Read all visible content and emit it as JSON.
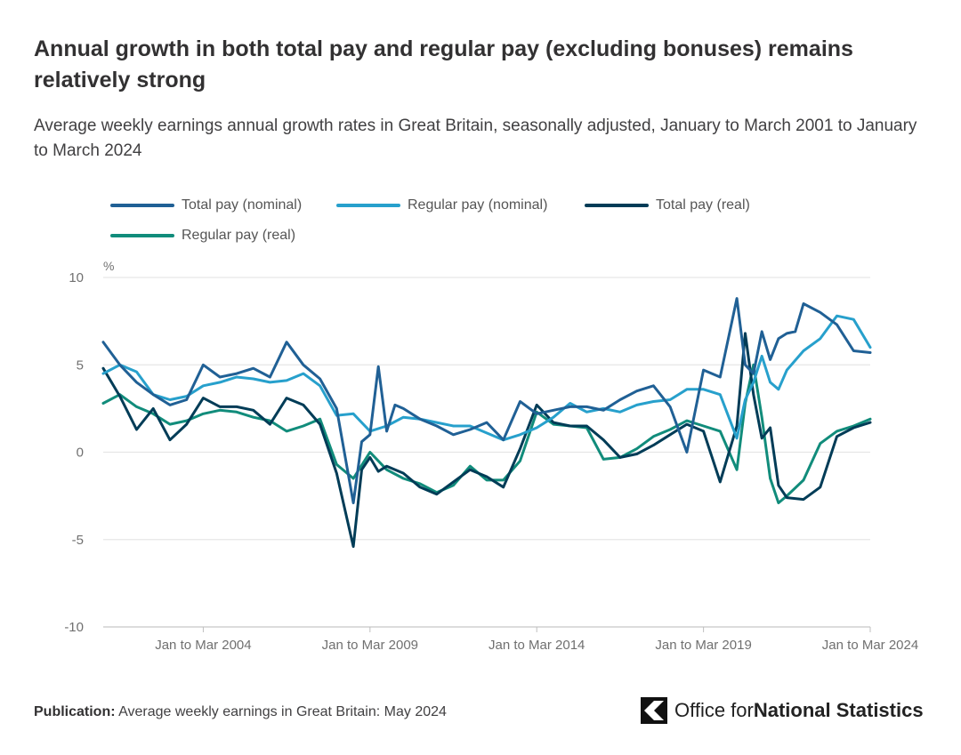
{
  "title": "Annual growth in both total pay and regular pay (excluding bonuses) remains relatively strong",
  "subtitle": "Average weekly earnings annual growth rates in Great Britain, seasonally adjusted, January to March 2001 to January to March 2024",
  "footer": {
    "label": "Publication:",
    "text": "Average weekly earnings in Great Britain: May 2024"
  },
  "brand": {
    "part1": "Office for ",
    "part2": "National Statistics"
  },
  "colors": {
    "total_nominal": "#206095",
    "regular_nominal": "#27a0cc",
    "total_real": "#003c57",
    "regular_real": "#118c7b",
    "grid": "#e6e6e6",
    "axis_text": "#707070"
  },
  "chart_data": {
    "type": "line",
    "title": "Annual growth in both total pay and regular pay (excluding bonuses) remains relatively strong",
    "ylabel": "%",
    "xlabel": "",
    "ylim": [
      -10,
      10
    ],
    "yticks": [
      10,
      5,
      0,
      -5,
      -10
    ],
    "xlim": [
      2001.0,
      2024.0
    ],
    "xtick_positions": [
      2004.0,
      2009.0,
      2014.0,
      2019.0,
      2024.0
    ],
    "xtick_labels": [
      "Jan to Mar 2004",
      "Jan to Mar 2009",
      "Jan to Mar 2014",
      "Jan to Mar 2019",
      "Jan to Mar 2024"
    ],
    "legend_position": "top",
    "grid": true,
    "series": [
      {
        "name": "Total pay (nominal)",
        "x": [
          2001.0,
          2001.5,
          2002.0,
          2002.5,
          2003.0,
          2003.5,
          2004.0,
          2004.5,
          2005.0,
          2005.5,
          2006.0,
          2006.5,
          2007.0,
          2007.5,
          2008.0,
          2008.5,
          2008.75,
          2009.0,
          2009.25,
          2009.5,
          2009.75,
          2010.0,
          2010.5,
          2011.0,
          2011.5,
          2012.0,
          2012.5,
          2013.0,
          2013.5,
          2014.0,
          2014.5,
          2015.0,
          2015.5,
          2016.0,
          2016.5,
          2017.0,
          2017.5,
          2018.0,
          2018.5,
          2019.0,
          2019.5,
          2020.0,
          2020.25,
          2020.5,
          2020.75,
          2021.0,
          2021.25,
          2021.5,
          2021.75,
          2022.0,
          2022.5,
          2023.0,
          2023.5,
          2024.0
        ],
        "y": [
          6.3,
          5.0,
          4.0,
          3.3,
          2.7,
          3.0,
          5.0,
          4.3,
          4.5,
          4.8,
          4.3,
          6.3,
          5.0,
          4.2,
          2.5,
          -2.9,
          0.6,
          1.0,
          4.9,
          1.2,
          2.7,
          2.5,
          1.9,
          1.5,
          1.0,
          1.3,
          1.7,
          0.7,
          2.9,
          2.2,
          2.4,
          2.6,
          2.6,
          2.4,
          3.0,
          3.5,
          3.8,
          2.6,
          0.0,
          4.7,
          4.3,
          8.8,
          5.0,
          4.5,
          6.9,
          5.3,
          6.5,
          6.8,
          6.9,
          8.5,
          8.0,
          7.3,
          5.8,
          5.7
        ]
      },
      {
        "name": "Regular pay (nominal)",
        "x": [
          2001.0,
          2001.5,
          2002.0,
          2002.5,
          2003.0,
          2003.5,
          2004.0,
          2004.5,
          2005.0,
          2005.5,
          2006.0,
          2006.5,
          2007.0,
          2007.5,
          2008.0,
          2008.5,
          2009.0,
          2009.5,
          2010.0,
          2010.5,
          2011.0,
          2011.5,
          2012.0,
          2012.5,
          2013.0,
          2013.5,
          2014.0,
          2014.5,
          2015.0,
          2015.5,
          2016.0,
          2016.5,
          2017.0,
          2017.5,
          2018.0,
          2018.5,
          2019.0,
          2019.5,
          2020.0,
          2020.25,
          2020.5,
          2020.75,
          2021.0,
          2021.25,
          2021.5,
          2022.0,
          2022.5,
          2023.0,
          2023.5,
          2024.0
        ],
        "y": [
          4.5,
          5.0,
          4.6,
          3.3,
          3.0,
          3.2,
          3.8,
          4.0,
          4.3,
          4.2,
          4.0,
          4.1,
          4.5,
          3.8,
          2.1,
          2.2,
          1.2,
          1.5,
          2.0,
          1.9,
          1.7,
          1.5,
          1.5,
          1.1,
          0.7,
          1.0,
          1.4,
          2.0,
          2.8,
          2.3,
          2.5,
          2.3,
          2.7,
          2.9,
          3.0,
          3.6,
          3.6,
          3.3,
          0.8,
          3.0,
          4.0,
          5.5,
          4.0,
          3.6,
          4.7,
          5.8,
          6.5,
          7.8,
          7.6,
          6.0
        ]
      },
      {
        "name": "Total pay (real)",
        "x": [
          2001.0,
          2001.5,
          2002.0,
          2002.5,
          2003.0,
          2003.5,
          2004.0,
          2004.5,
          2005.0,
          2005.5,
          2006.0,
          2006.5,
          2007.0,
          2007.5,
          2008.0,
          2008.5,
          2008.75,
          2009.0,
          2009.25,
          2009.5,
          2010.0,
          2010.5,
          2011.0,
          2011.5,
          2012.0,
          2012.5,
          2013.0,
          2013.5,
          2014.0,
          2014.5,
          2015.0,
          2015.5,
          2016.0,
          2016.5,
          2017.0,
          2017.5,
          2018.0,
          2018.5,
          2019.0,
          2019.5,
          2020.0,
          2020.25,
          2020.5,
          2020.75,
          2021.0,
          2021.25,
          2021.5,
          2022.0,
          2022.5,
          2023.0,
          2023.5,
          2024.0
        ],
        "y": [
          4.8,
          3.2,
          1.3,
          2.5,
          0.7,
          1.6,
          3.1,
          2.6,
          2.6,
          2.4,
          1.6,
          3.1,
          2.7,
          1.6,
          -1.2,
          -5.4,
          -1.0,
          -0.3,
          -1.1,
          -0.8,
          -1.2,
          -2.0,
          -2.4,
          -1.7,
          -1.0,
          -1.4,
          -2.0,
          0.2,
          2.7,
          1.7,
          1.5,
          1.5,
          0.7,
          -0.3,
          -0.1,
          0.4,
          1.0,
          1.6,
          1.2,
          -1.7,
          1.5,
          6.8,
          3.3,
          0.8,
          1.4,
          -1.9,
          -2.6,
          -2.7,
          -2.0,
          0.9,
          1.4,
          1.7
        ]
      },
      {
        "name": "Regular pay (real)",
        "x": [
          2001.0,
          2001.5,
          2002.0,
          2002.5,
          2003.0,
          2003.5,
          2004.0,
          2004.5,
          2005.0,
          2005.5,
          2006.0,
          2006.5,
          2007.0,
          2007.5,
          2008.0,
          2008.5,
          2009.0,
          2009.5,
          2010.0,
          2010.5,
          2011.0,
          2011.5,
          2012.0,
          2012.5,
          2013.0,
          2013.5,
          2014.0,
          2014.5,
          2015.0,
          2015.5,
          2016.0,
          2016.5,
          2017.0,
          2017.5,
          2018.0,
          2018.5,
          2019.0,
          2019.5,
          2020.0,
          2020.25,
          2020.5,
          2020.75,
          2021.0,
          2021.25,
          2021.5,
          2022.0,
          2022.5,
          2023.0,
          2023.5,
          2024.0
        ],
        "y": [
          2.8,
          3.3,
          2.6,
          2.2,
          1.6,
          1.8,
          2.2,
          2.4,
          2.3,
          2.0,
          1.8,
          1.2,
          1.5,
          1.9,
          -0.7,
          -1.5,
          0.0,
          -1.0,
          -1.5,
          -1.8,
          -2.3,
          -1.9,
          -0.8,
          -1.6,
          -1.6,
          -0.5,
          2.3,
          1.6,
          1.5,
          1.4,
          -0.4,
          -0.3,
          0.2,
          0.9,
          1.3,
          1.8,
          1.5,
          1.2,
          -1.0,
          2.8,
          5.0,
          2.0,
          -1.5,
          -2.9,
          -2.5,
          -1.6,
          0.5,
          1.2,
          1.5,
          1.9
        ]
      }
    ]
  }
}
